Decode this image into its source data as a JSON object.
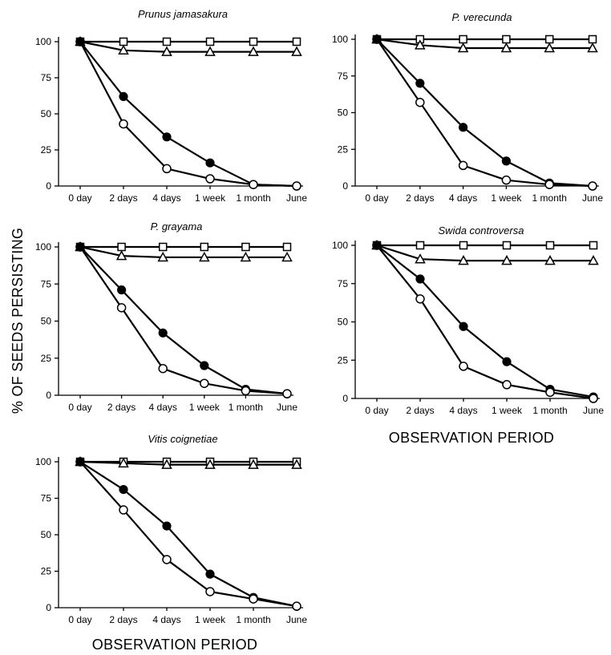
{
  "figure": {
    "ylabel": "% OF SEEDS PERSISTING",
    "xlabel": "OBSERVATION PERIOD"
  },
  "chart_data": [
    {
      "type": "line",
      "title": "Prunus jamasakura",
      "categories": [
        "0 day",
        "2 days",
        "4 days",
        "1 week",
        "1 month",
        "June"
      ],
      "ylim": [
        0,
        100
      ],
      "yticks": [
        0,
        25,
        50,
        75,
        100
      ],
      "series": [
        {
          "marker": "square-open",
          "values": [
            100,
            100,
            100,
            100,
            100,
            100
          ]
        },
        {
          "marker": "triangle-open",
          "values": [
            100,
            94,
            93,
            93,
            93,
            93
          ]
        },
        {
          "marker": "circle-filled",
          "values": [
            100,
            62,
            34,
            16,
            1,
            0
          ]
        },
        {
          "marker": "circle-open",
          "values": [
            100,
            43,
            12,
            5,
            1,
            0
          ]
        }
      ]
    },
    {
      "type": "line",
      "title": "P. verecunda",
      "categories": [
        "0 day",
        "2 days",
        "4 days",
        "1 week",
        "1 month",
        "June"
      ],
      "ylim": [
        0,
        100
      ],
      "yticks": [
        0,
        25,
        50,
        75,
        100
      ],
      "series": [
        {
          "marker": "square-open",
          "values": [
            100,
            100,
            100,
            100,
            100,
            100
          ]
        },
        {
          "marker": "triangle-open",
          "values": [
            100,
            96,
            94,
            94,
            94,
            94
          ]
        },
        {
          "marker": "circle-filled",
          "values": [
            100,
            70,
            40,
            17,
            2,
            0
          ]
        },
        {
          "marker": "circle-open",
          "values": [
            100,
            57,
            14,
            4,
            1,
            0
          ]
        }
      ]
    },
    {
      "type": "line",
      "title": "P. grayama",
      "categories": [
        "0 day",
        "2 days",
        "4 days",
        "1 week",
        "1 month",
        "June"
      ],
      "ylim": [
        0,
        100
      ],
      "yticks": [
        0,
        25,
        50,
        75,
        100
      ],
      "series": [
        {
          "marker": "square-open",
          "values": [
            100,
            100,
            100,
            100,
            100,
            100
          ]
        },
        {
          "marker": "triangle-open",
          "values": [
            100,
            94,
            93,
            93,
            93,
            93
          ]
        },
        {
          "marker": "circle-filled",
          "values": [
            100,
            71,
            42,
            20,
            4,
            1
          ]
        },
        {
          "marker": "circle-open",
          "values": [
            100,
            59,
            18,
            8,
            3,
            1
          ]
        }
      ]
    },
    {
      "type": "line",
      "title": "Swida controversa",
      "categories": [
        "0 day",
        "2 days",
        "4 days",
        "1 week",
        "1 month",
        "June"
      ],
      "ylim": [
        0,
        100
      ],
      "yticks": [
        0,
        25,
        50,
        75,
        100
      ],
      "series": [
        {
          "marker": "square-open",
          "values": [
            100,
            100,
            100,
            100,
            100,
            100
          ]
        },
        {
          "marker": "triangle-open",
          "values": [
            100,
            91,
            90,
            90,
            90,
            90
          ]
        },
        {
          "marker": "circle-filled",
          "values": [
            100,
            78,
            47,
            24,
            6,
            1
          ]
        },
        {
          "marker": "circle-open",
          "values": [
            100,
            65,
            21,
            9,
            4,
            0
          ]
        }
      ]
    },
    {
      "type": "line",
      "title": "Vitis coignetiae",
      "categories": [
        "0 day",
        "2 days",
        "4 days",
        "1 week",
        "1 month",
        "June"
      ],
      "ylim": [
        0,
        100
      ],
      "yticks": [
        0,
        25,
        50,
        75,
        100
      ],
      "series": [
        {
          "marker": "square-open",
          "values": [
            100,
            100,
            100,
            100,
            100,
            100
          ]
        },
        {
          "marker": "triangle-open",
          "values": [
            100,
            99,
            98,
            98,
            98,
            98
          ]
        },
        {
          "marker": "circle-filled",
          "values": [
            100,
            81,
            56,
            23,
            7,
            1
          ]
        },
        {
          "marker": "circle-open",
          "values": [
            100,
            67,
            33,
            11,
            6,
            1
          ]
        }
      ]
    }
  ]
}
